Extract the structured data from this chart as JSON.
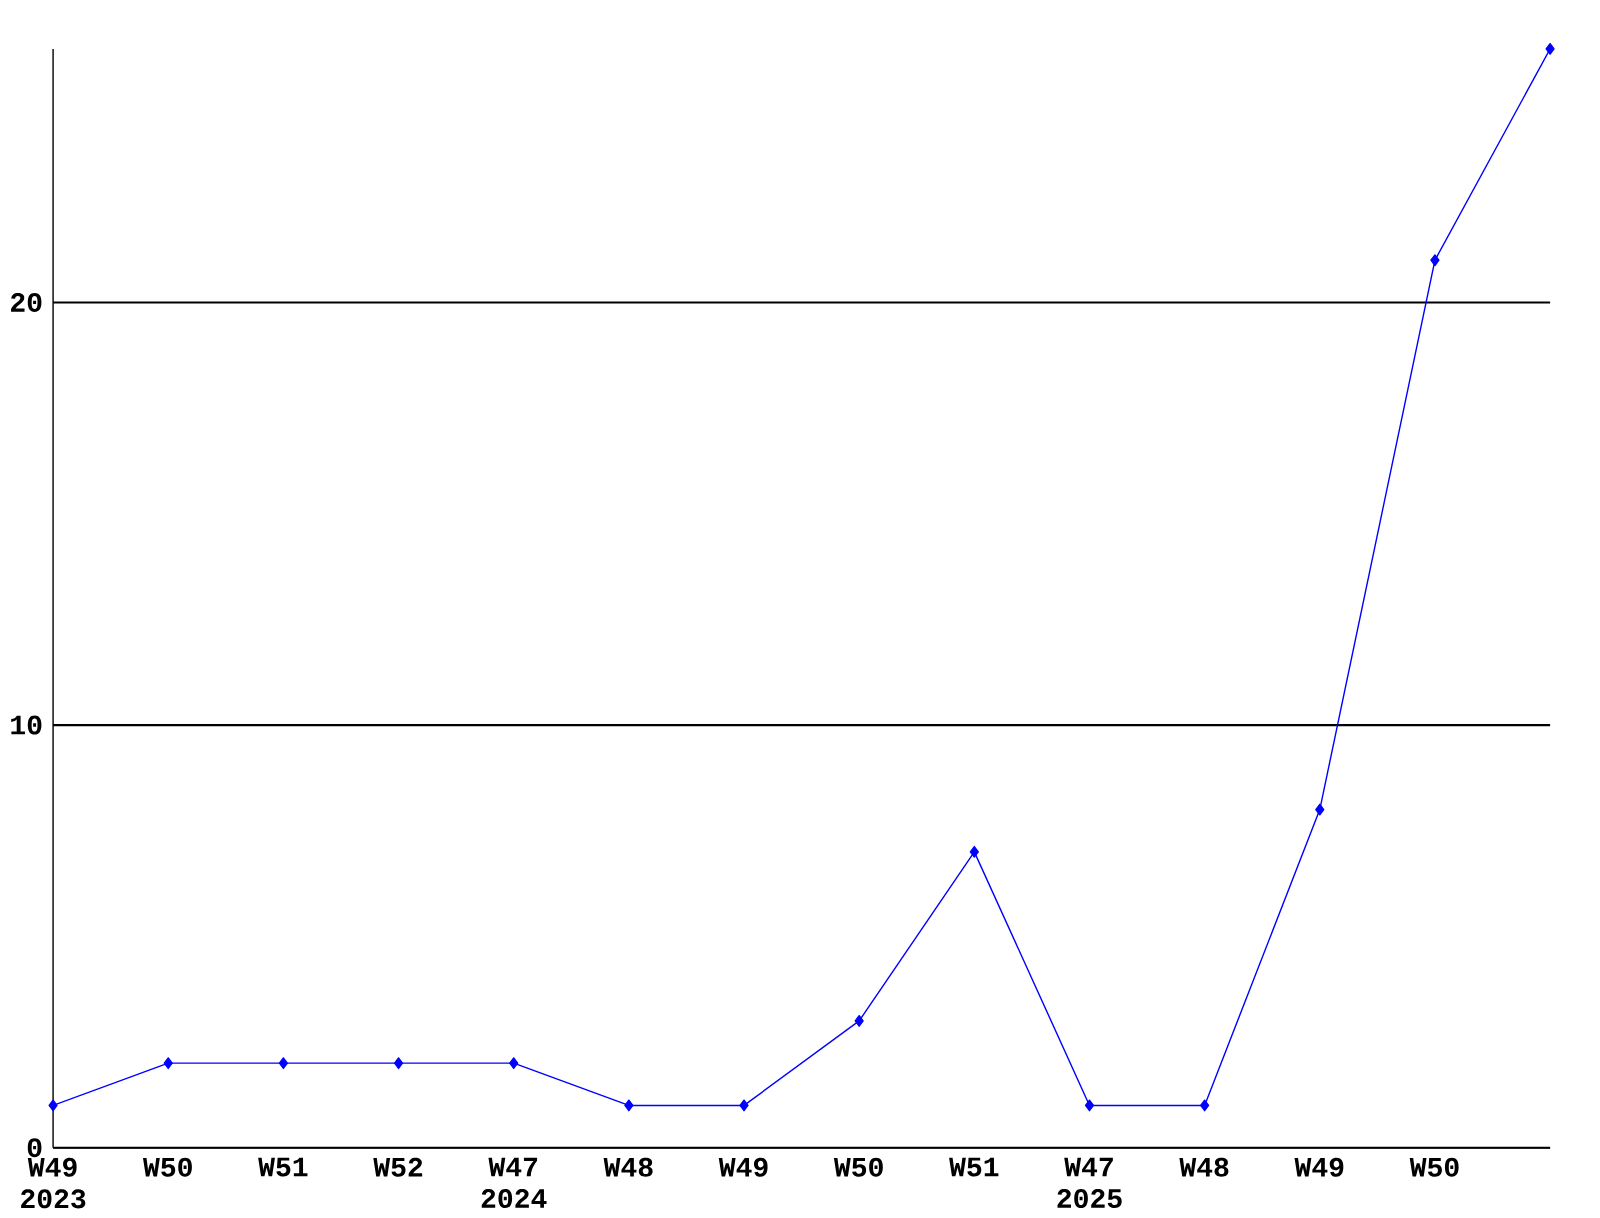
{
  "chart_data": {
    "type": "line",
    "categories": [
      "W49\n2023",
      "W50",
      "W51",
      "W52",
      "W47\n2024",
      "W48",
      "W49",
      "W50",
      "W51",
      "W47\n2025",
      "W48",
      "W49",
      "W50",
      null
    ],
    "values": [
      1,
      2,
      2,
      2,
      2,
      1,
      1,
      3,
      7,
      1,
      1,
      8,
      21,
      26
    ],
    "color": "#0000ff",
    "marker": "diamond",
    "line_style": "solid",
    "ylim": [
      0,
      26
    ],
    "yticks": [
      0,
      10,
      20
    ],
    "grid": "y"
  }
}
